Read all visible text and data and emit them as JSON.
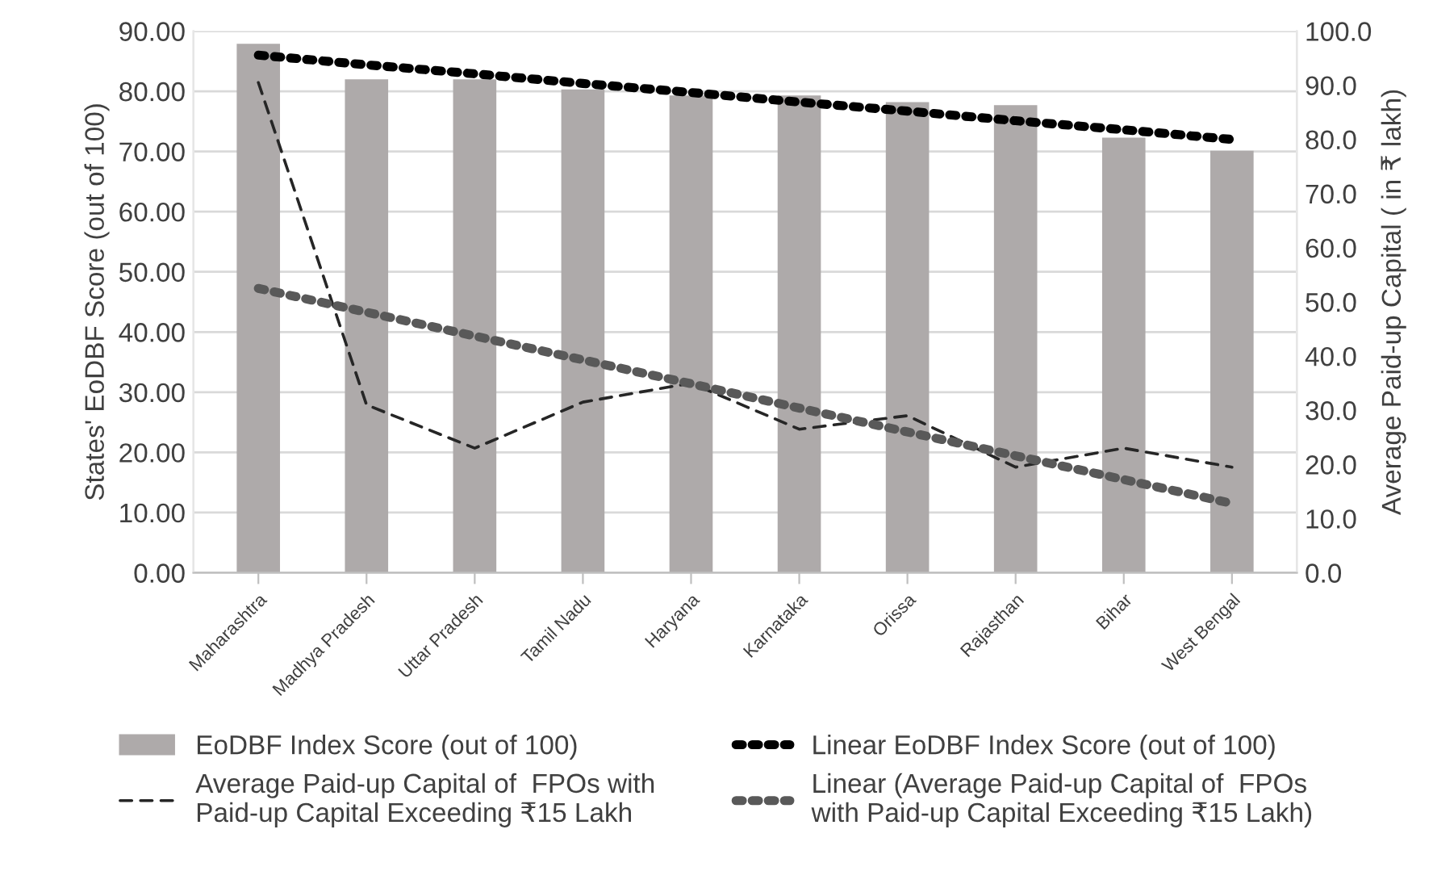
{
  "chart_data": {
    "type": "bar",
    "categories": [
      "Maharashtra",
      "Madhya Pradesh",
      "Uttar Pradesh",
      "Tamil Nadu",
      "Haryana",
      "Karnataka",
      "Orissa",
      "Rajasthan",
      "Bihar",
      "West Bengal"
    ],
    "ylabel": "States' EoDBF Score (out of 100)",
    "y2label": "Average Paid-up Capital ( in ₹ lakh)",
    "series": [
      {
        "name": "EoDBF Index Score (out of 100)",
        "color": "#aeaaaa",
        "values": [
          87.9,
          82.0,
          82.0,
          80.3,
          79.3,
          79.3,
          78.2,
          77.7,
          72.3,
          70.1
        ]
      },
      {
        "name": "Average Paid-up Capital of  FPOs with\nPaid-up Capital Exceeding ₹15 Lakh",
        "type": "line",
        "axis": "y2",
        "color": "#262626",
        "line_style": "dashed",
        "values": [
          90.5,
          31.0,
          23.0,
          31.5,
          35.0,
          26.5,
          29.0,
          19.5,
          23.0,
          19.5
        ]
      },
      {
        "name": "Linear EoDBF Index Score (out of 100)",
        "type": "line",
        "color": "#000000",
        "line_style": "dotted",
        "values": [
          86.0,
          84.4,
          82.9,
          81.3,
          79.8,
          78.2,
          76.7,
          75.1,
          73.6,
          72.0
        ]
      },
      {
        "name": "Linear (Average Paid-up Capital of  FPOs\nwith Paid-up Capital Exceeding ₹15 Lakh)",
        "type": "line",
        "axis": "y2",
        "color": "#595959",
        "line_style": "dotted",
        "values": [
          52.5,
          48.1,
          43.7,
          39.3,
          34.9,
          30.4,
          26.0,
          21.6,
          17.2,
          12.8
        ]
      }
    ],
    "ylim": [
      0,
      90
    ],
    "yticks": [
      {
        "value": 0,
        "label": "0.00"
      },
      {
        "value": 10,
        "label": "10.00"
      },
      {
        "value": 20,
        "label": "20.00"
      },
      {
        "value": 30,
        "label": "30.00"
      },
      {
        "value": 40,
        "label": "40.00"
      },
      {
        "value": 50,
        "label": "50.00"
      },
      {
        "value": 60,
        "label": "60.00"
      },
      {
        "value": 70,
        "label": "70.00"
      },
      {
        "value": 80,
        "label": "80.00"
      },
      {
        "value": 90,
        "label": "90.00"
      }
    ],
    "y2lim": [
      0,
      100
    ],
    "y2ticks": [
      {
        "value": 0,
        "label": "0.0"
      },
      {
        "value": 10,
        "label": "10.0"
      },
      {
        "value": 20,
        "label": "20.0"
      },
      {
        "value": 30,
        "label": "30.0"
      },
      {
        "value": 40,
        "label": "40.0"
      },
      {
        "value": 50,
        "label": "50.0"
      },
      {
        "value": 60,
        "label": "60.0"
      },
      {
        "value": 70,
        "label": "70.0"
      },
      {
        "value": 80,
        "label": "80.0"
      },
      {
        "value": 90,
        "label": "90.0"
      },
      {
        "value": 100,
        "label": "100.0"
      }
    ],
    "grid": "y",
    "legend": "bottom",
    "marker": "none"
  }
}
